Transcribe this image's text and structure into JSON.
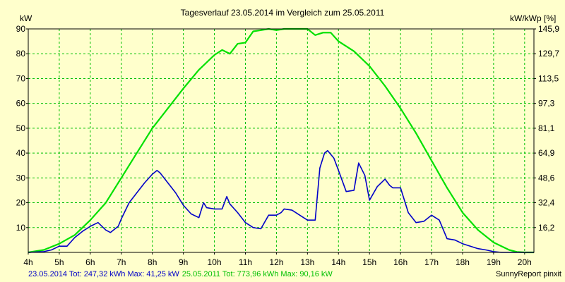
{
  "chart_data": {
    "type": "line",
    "title": "Tagesverlauf 23.05.2014 im Vergleich zum 25.05.2011",
    "ylabel_left": "kW",
    "ylabel_right": "kW/kWp [%]",
    "x_ticks": [
      "4h",
      "5h",
      "6h",
      "7h",
      "8h",
      "9h",
      "10h",
      "11h",
      "12h",
      "13h",
      "14h",
      "15h",
      "16h",
      "17h",
      "18h",
      "19h",
      "20h"
    ],
    "xlim": [
      4,
      20.3
    ],
    "ylim": [
      0,
      90
    ],
    "y_ticks_left": [
      "10",
      "20",
      "30",
      "40",
      "50",
      "60",
      "70",
      "80",
      "90"
    ],
    "y_ticks_right": [
      "16,2",
      "32,4",
      "48,6",
      "64,9",
      "81,1",
      "97,3",
      "113,5",
      "129,7",
      "145,9"
    ],
    "grid": true,
    "colors": {
      "background": "#ffffcc",
      "grid": "#00c000",
      "series_2014": "#0000c8",
      "series_2011": "#00e000",
      "footer_2014": "#0000c8",
      "footer_2011": "#00c000"
    },
    "series": [
      {
        "key": "2014",
        "x": [
          4.0,
          4.5,
          4.75,
          5.0,
          5.25,
          5.5,
          5.75,
          6.0,
          6.25,
          6.5,
          6.65,
          6.75,
          6.9,
          7.0,
          7.25,
          7.5,
          7.75,
          8.0,
          8.15,
          8.25,
          8.5,
          8.75,
          9.0,
          9.25,
          9.5,
          9.65,
          9.75,
          10.0,
          10.25,
          10.4,
          10.5,
          10.75,
          11.0,
          11.25,
          11.5,
          11.75,
          12.0,
          12.15,
          12.25,
          12.5,
          12.75,
          13.0,
          13.25,
          13.4,
          13.55,
          13.65,
          13.85,
          14.0,
          14.25,
          14.5,
          14.65,
          14.85,
          15.0,
          15.25,
          15.5,
          15.65,
          15.75,
          16.0,
          16.25,
          16.5,
          16.75,
          17.0,
          17.25,
          17.5,
          17.75,
          18.0,
          18.25,
          18.5,
          18.75,
          19.0,
          19.25,
          19.5,
          19.75,
          20.0,
          20.3
        ],
        "y": [
          0.0,
          0.3,
          1.0,
          2.5,
          2.5,
          6.0,
          8.5,
          10.5,
          12.0,
          9.0,
          8.0,
          9.0,
          10.5,
          13.5,
          20.0,
          24.0,
          28.0,
          31.5,
          33.0,
          32.0,
          28.0,
          24.0,
          19.0,
          15.5,
          14.0,
          20.0,
          18.0,
          17.5,
          17.5,
          22.5,
          19.5,
          16.0,
          12.0,
          10.0,
          9.5,
          15.0,
          15.0,
          16.0,
          17.5,
          17.0,
          15.0,
          13.0,
          13.0,
          34.0,
          40.0,
          41.0,
          38.0,
          33.0,
          24.5,
          25.0,
          36.0,
          31.0,
          21.0,
          26.5,
          29.5,
          27.0,
          26.0,
          26.0,
          16.0,
          12.0,
          12.5,
          15.0,
          13.0,
          5.5,
          5.0,
          3.5,
          2.5,
          1.5,
          1.0,
          0.3,
          0.0,
          0.0,
          0.0,
          0.0,
          0.0
        ]
      },
      {
        "key": "2011",
        "x": [
          4.0,
          4.5,
          5.0,
          5.5,
          6.0,
          6.5,
          7.0,
          7.5,
          8.0,
          8.5,
          9.0,
          9.5,
          10.0,
          10.25,
          10.5,
          10.75,
          11.0,
          11.25,
          11.5,
          11.75,
          12.0,
          12.25,
          12.5,
          12.75,
          13.0,
          13.25,
          13.5,
          13.75,
          14.0,
          14.5,
          15.0,
          15.5,
          16.0,
          16.5,
          17.0,
          17.5,
          18.0,
          18.5,
          19.0,
          19.5,
          19.75,
          20.0,
          20.3
        ],
        "y": [
          0.0,
          1.0,
          3.5,
          7.0,
          13.0,
          20.0,
          30.0,
          40.0,
          50.0,
          58.0,
          66.0,
          73.5,
          79.5,
          81.5,
          80.0,
          84.0,
          84.5,
          89.0,
          89.5,
          90.0,
          89.5,
          90.0,
          90.0,
          90.0,
          90.0,
          87.5,
          88.5,
          88.5,
          85.0,
          81.0,
          75.0,
          67.0,
          58.0,
          48.0,
          37.0,
          26.0,
          16.0,
          9.0,
          4.0,
          1.0,
          0.2,
          0.0,
          0.0
        ]
      }
    ]
  },
  "footer": {
    "legend_2014": "23.05.2014 Tot: 247,32 kWh Max: 41,25 kW",
    "legend_2011": "25.05.2011 Tot: 773,96 kWh Max: 90,16 kW",
    "credit": "SunnyReport pinxit"
  }
}
